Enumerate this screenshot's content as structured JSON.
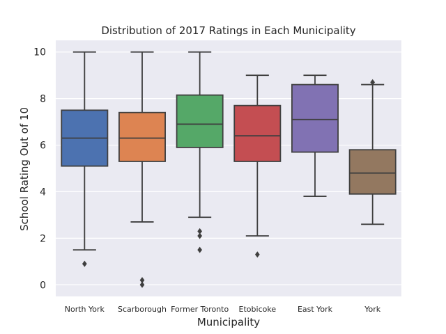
{
  "chart_data": {
    "type": "box",
    "title": "Distribution of 2017 Ratings in Each Municipality",
    "xlabel": "Municipality",
    "ylabel": "School Rating Out of 10",
    "ylim": [
      -0.5,
      10.5
    ],
    "yticks": [
      0,
      2,
      4,
      6,
      8,
      10
    ],
    "grid": true,
    "categories": [
      "North York",
      "Scarborough",
      "Former Toronto",
      "Etobicoke",
      "East York",
      "York"
    ],
    "boxes": [
      {
        "category": "North York",
        "whisker_low": 1.5,
        "q1": 5.1,
        "median": 6.3,
        "q3": 7.5,
        "whisker_high": 10.0,
        "outliers": [
          0.9
        ],
        "color": "#4c72b0"
      },
      {
        "category": "Scarborough",
        "whisker_low": 2.7,
        "q1": 5.3,
        "median": 6.3,
        "q3": 7.4,
        "whisker_high": 10.0,
        "outliers": [
          0.2,
          0.0
        ],
        "color": "#dd8452"
      },
      {
        "category": "Former Toronto",
        "whisker_low": 2.9,
        "q1": 5.9,
        "median": 6.9,
        "q3": 8.15,
        "whisker_high": 10.0,
        "outliers": [
          2.3,
          2.1,
          1.5
        ],
        "color": "#55a868"
      },
      {
        "category": "Etobicoke",
        "whisker_low": 2.1,
        "q1": 5.3,
        "median": 6.4,
        "q3": 7.7,
        "whisker_high": 9.0,
        "outliers": [
          1.3
        ],
        "color": "#c44e52"
      },
      {
        "category": "East York",
        "whisker_low": 3.8,
        "q1": 5.7,
        "median": 7.1,
        "q3": 8.6,
        "whisker_high": 9.0,
        "outliers": [],
        "color": "#8172b3"
      },
      {
        "category": "York",
        "whisker_low": 2.6,
        "q1": 3.9,
        "median": 4.8,
        "q3": 5.8,
        "whisker_high": 8.6,
        "outliers": [
          8.7
        ],
        "color": "#937860"
      }
    ]
  }
}
